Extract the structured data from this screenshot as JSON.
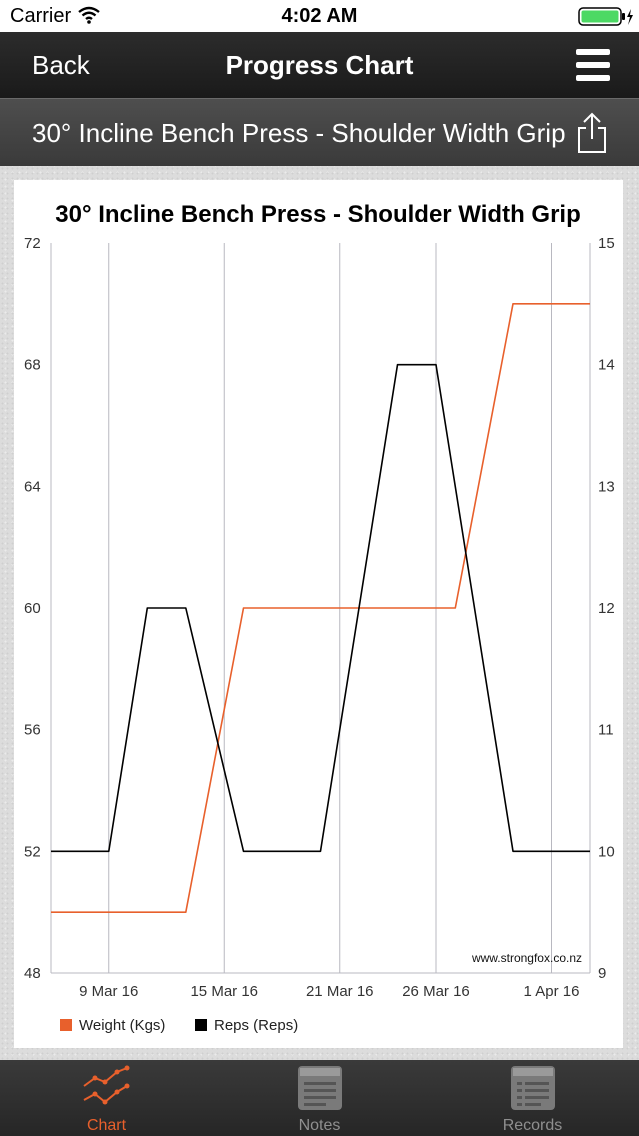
{
  "status_bar": {
    "carrier": "Carrier",
    "time": "4:02 AM"
  },
  "navbar": {
    "back_label": "Back",
    "title": "Progress Chart"
  },
  "subheader": {
    "exercise_name": "30° Incline Bench Press - Shoulder Width Grip"
  },
  "colors": {
    "weight": "#e8602c",
    "reps": "#000000",
    "active_tab": "#e8602c",
    "inactive_tab": "#8f8f8f"
  },
  "tabs": [
    {
      "label": "Chart",
      "icon": "line-chart-icon",
      "active": true
    },
    {
      "label": "Notes",
      "icon": "notes-icon",
      "active": false
    },
    {
      "label": "Records",
      "icon": "records-icon",
      "active": false
    }
  ],
  "chart_data": {
    "type": "line",
    "title": "30° Incline Bench Press - Shoulder Width Grip",
    "watermark": "www.strongfox.co.nz",
    "x_tick_labels": [
      "9 Mar 16",
      "15 Mar 16",
      "21 Mar 16",
      "26 Mar 16",
      "1 Apr 16"
    ],
    "x_ticks": [
      "2016-03-09",
      "2016-03-15",
      "2016-03-21",
      "2016-03-26",
      "2016-04-01"
    ],
    "x_range": [
      "2016-03-06",
      "2016-04-03"
    ],
    "y_left": {
      "min": 48,
      "max": 72,
      "ticks": [
        48,
        52,
        56,
        60,
        64,
        68,
        72
      ]
    },
    "y_right": {
      "min": 9,
      "max": 15,
      "ticks": [
        9,
        10,
        11,
        12,
        13,
        14,
        15
      ]
    },
    "series": [
      {
        "name": "Weight (Kgs)",
        "axis": "left",
        "color": "#e8602c",
        "points": [
          [
            "2016-03-06",
            50
          ],
          [
            "2016-03-13",
            50
          ],
          [
            "2016-03-16",
            60
          ],
          [
            "2016-03-22",
            60
          ],
          [
            "2016-03-27",
            60
          ],
          [
            "2016-03-30",
            70
          ],
          [
            "2016-04-03",
            70
          ]
        ]
      },
      {
        "name": "Reps (Reps)",
        "axis": "right",
        "color": "#000000",
        "points": [
          [
            "2016-03-06",
            10
          ],
          [
            "2016-03-09",
            10
          ],
          [
            "2016-03-11",
            12
          ],
          [
            "2016-03-13",
            12
          ],
          [
            "2016-03-16",
            10
          ],
          [
            "2016-03-20",
            10
          ],
          [
            "2016-03-24",
            14
          ],
          [
            "2016-03-26",
            14
          ],
          [
            "2016-03-30",
            10
          ],
          [
            "2016-04-03",
            10
          ]
        ]
      }
    ],
    "legend": "bottom-left",
    "grid": "vertical"
  }
}
